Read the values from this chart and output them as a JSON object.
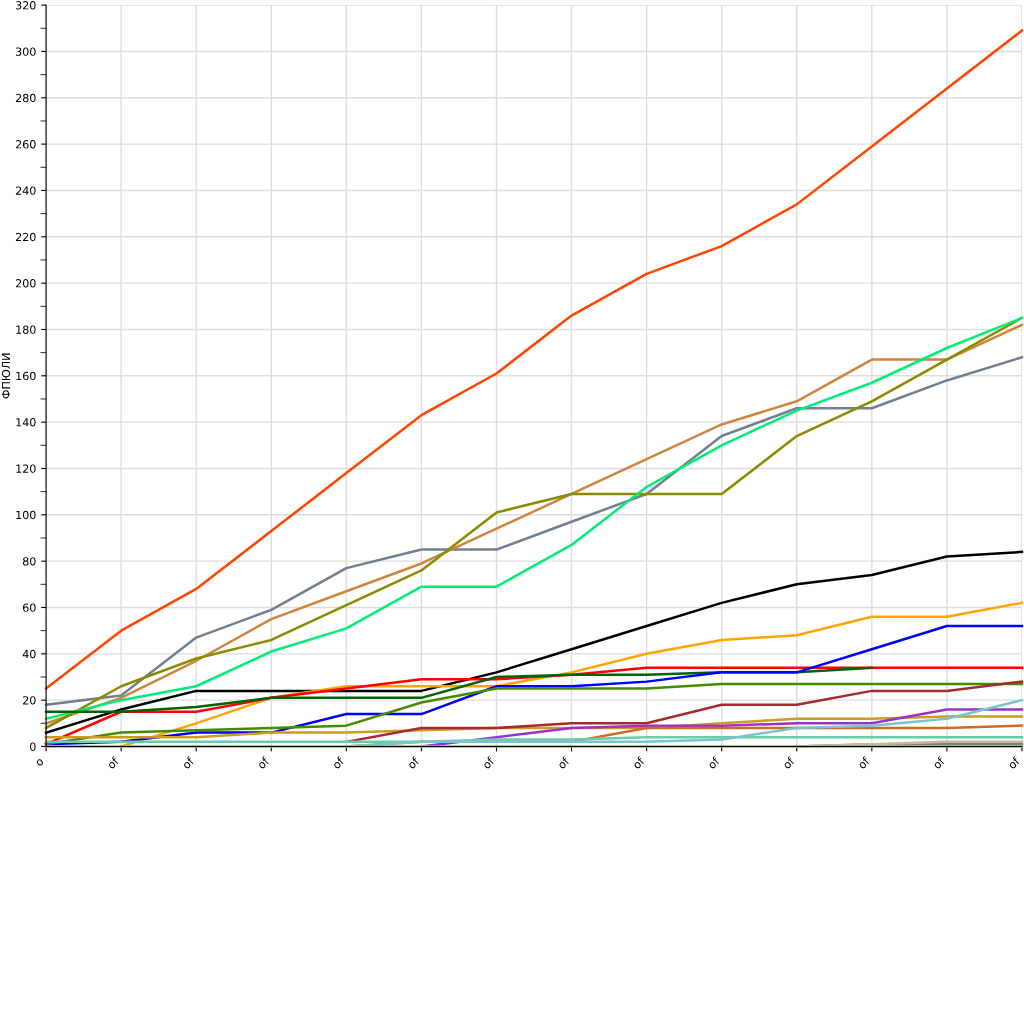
{
  "chart_data": {
    "type": "line",
    "ylabel": "ФПЮЛИ",
    "categories": [
      "o",
      "of",
      "of",
      "of",
      "of",
      "of",
      "of",
      "of",
      "of",
      "of",
      "of",
      "of",
      "of",
      "of"
    ],
    "series": [
      {
        "color": "#ff4500",
        "values": [
          25,
          50,
          68,
          93,
          118,
          143,
          161,
          186,
          204,
          216,
          234,
          259,
          284,
          309
        ]
      },
      {
        "color": "#708090",
        "values": [
          18,
          22,
          47,
          59,
          77,
          85,
          85,
          97,
          109,
          134,
          146,
          146,
          158,
          168
        ]
      },
      {
        "color": "#cd853f",
        "values": [
          10,
          21,
          37,
          55,
          67,
          79,
          94,
          109,
          124,
          139,
          149,
          167,
          167,
          182
        ]
      },
      {
        "color": "#8b8b00",
        "values": [
          8,
          26,
          38,
          46,
          61,
          76,
          101,
          109,
          109,
          109,
          134,
          149,
          167,
          185
        ]
      },
      {
        "color": "#00ee76",
        "values": [
          12,
          20,
          26,
          41,
          51,
          69,
          69,
          87,
          112,
          130,
          145,
          157,
          172,
          185
        ]
      },
      {
        "color": "#000000",
        "values": [
          6,
          16,
          24,
          24,
          24,
          24,
          32,
          42,
          52,
          62,
          70,
          74,
          82,
          84
        ]
      },
      {
        "color": "#ffa500",
        "values": [
          null,
          0,
          10,
          21,
          26,
          26,
          26,
          32,
          40,
          46,
          48,
          56,
          56,
          62
        ]
      },
      {
        "color": "#ff0000",
        "values": [
          1,
          15,
          15,
          21,
          25,
          29,
          29,
          31,
          34,
          34,
          34,
          34,
          34,
          34
        ]
      },
      {
        "color": "#006400",
        "values": [
          15,
          15,
          17,
          21,
          21,
          21,
          30,
          31,
          31,
          32,
          32,
          34,
          null,
          null
        ]
      },
      {
        "color": "#0000ff",
        "values": [
          1,
          2,
          6,
          6,
          14,
          14,
          26,
          26,
          28,
          32,
          32,
          42,
          52,
          52
        ]
      },
      {
        "color": "#458b00",
        "values": [
          1,
          6,
          7,
          8,
          9,
          19,
          25,
          25,
          25,
          27,
          27,
          27,
          27,
          27
        ]
      },
      {
        "color": "#cd9b1d",
        "values": [
          4,
          4,
          4,
          6,
          6,
          7,
          8,
          8,
          8,
          10,
          12,
          12,
          13,
          13
        ]
      },
      {
        "color": "#a52a2a",
        "values": [
          null,
          null,
          null,
          null,
          2,
          8,
          8,
          10,
          10,
          18,
          18,
          24,
          24,
          28
        ]
      },
      {
        "color": "#9932cc",
        "values": [
          null,
          null,
          null,
          null,
          null,
          0,
          4,
          8,
          9,
          9,
          10,
          10,
          16,
          16
        ]
      },
      {
        "color": "#d2691e",
        "values": [
          null,
          null,
          null,
          null,
          0,
          2,
          2,
          2,
          8,
          8,
          8,
          8,
          8,
          9
        ]
      },
      {
        "color": "#66cdaa",
        "values": [
          2,
          2,
          2,
          2,
          2,
          2,
          3,
          3,
          4,
          4,
          4,
          4,
          4,
          4
        ]
      },
      {
        "color": "#7ac5cd",
        "values": [
          null,
          null,
          null,
          null,
          0,
          2,
          2,
          2,
          2,
          3,
          8,
          9,
          12,
          20
        ]
      },
      {
        "color": "#808080",
        "values": [
          null,
          null,
          null,
          null,
          null,
          null,
          null,
          null,
          null,
          null,
          0,
          1,
          1,
          1
        ]
      },
      {
        "color": "#c8b89a",
        "values": [
          null,
          null,
          null,
          null,
          null,
          null,
          null,
          null,
          null,
          null,
          0,
          1,
          2,
          2
        ]
      },
      {
        "color": "#fa8072",
        "values": [
          0,
          0,
          0,
          0,
          0,
          0,
          0,
          0,
          0,
          0,
          0,
          0,
          0,
          0
        ]
      }
    ],
    "ylim": [
      0,
      320
    ],
    "yticks": [
      0,
      {
        "value": 10,
        "label": null
      },
      20,
      {
        "value": 30,
        "label": null
      },
      40,
      {
        "value": 50,
        "label": null
      },
      60,
      {
        "value": 70,
        "label": null
      },
      80,
      {
        "value": 90,
        "label": null
      },
      100,
      {
        "value": 110,
        "label": null
      },
      120,
      {
        "value": 130,
        "label": null
      },
      140,
      {
        "value": 150,
        "label": null
      },
      160,
      {
        "value": 170,
        "label": null
      },
      180,
      {
        "value": 190,
        "label": null
      },
      200,
      {
        "value": 210,
        "label": null
      },
      220,
      {
        "value": 230,
        "label": null
      },
      240,
      {
        "value": 250,
        "label": null
      },
      260,
      {
        "value": 270,
        "label": null
      },
      280,
      {
        "value": 290,
        "label": null
      },
      300,
      {
        "value": 310,
        "label": null
      },
      320
    ],
    "grid": true,
    "marker": "none",
    "line_style": "solid"
  }
}
